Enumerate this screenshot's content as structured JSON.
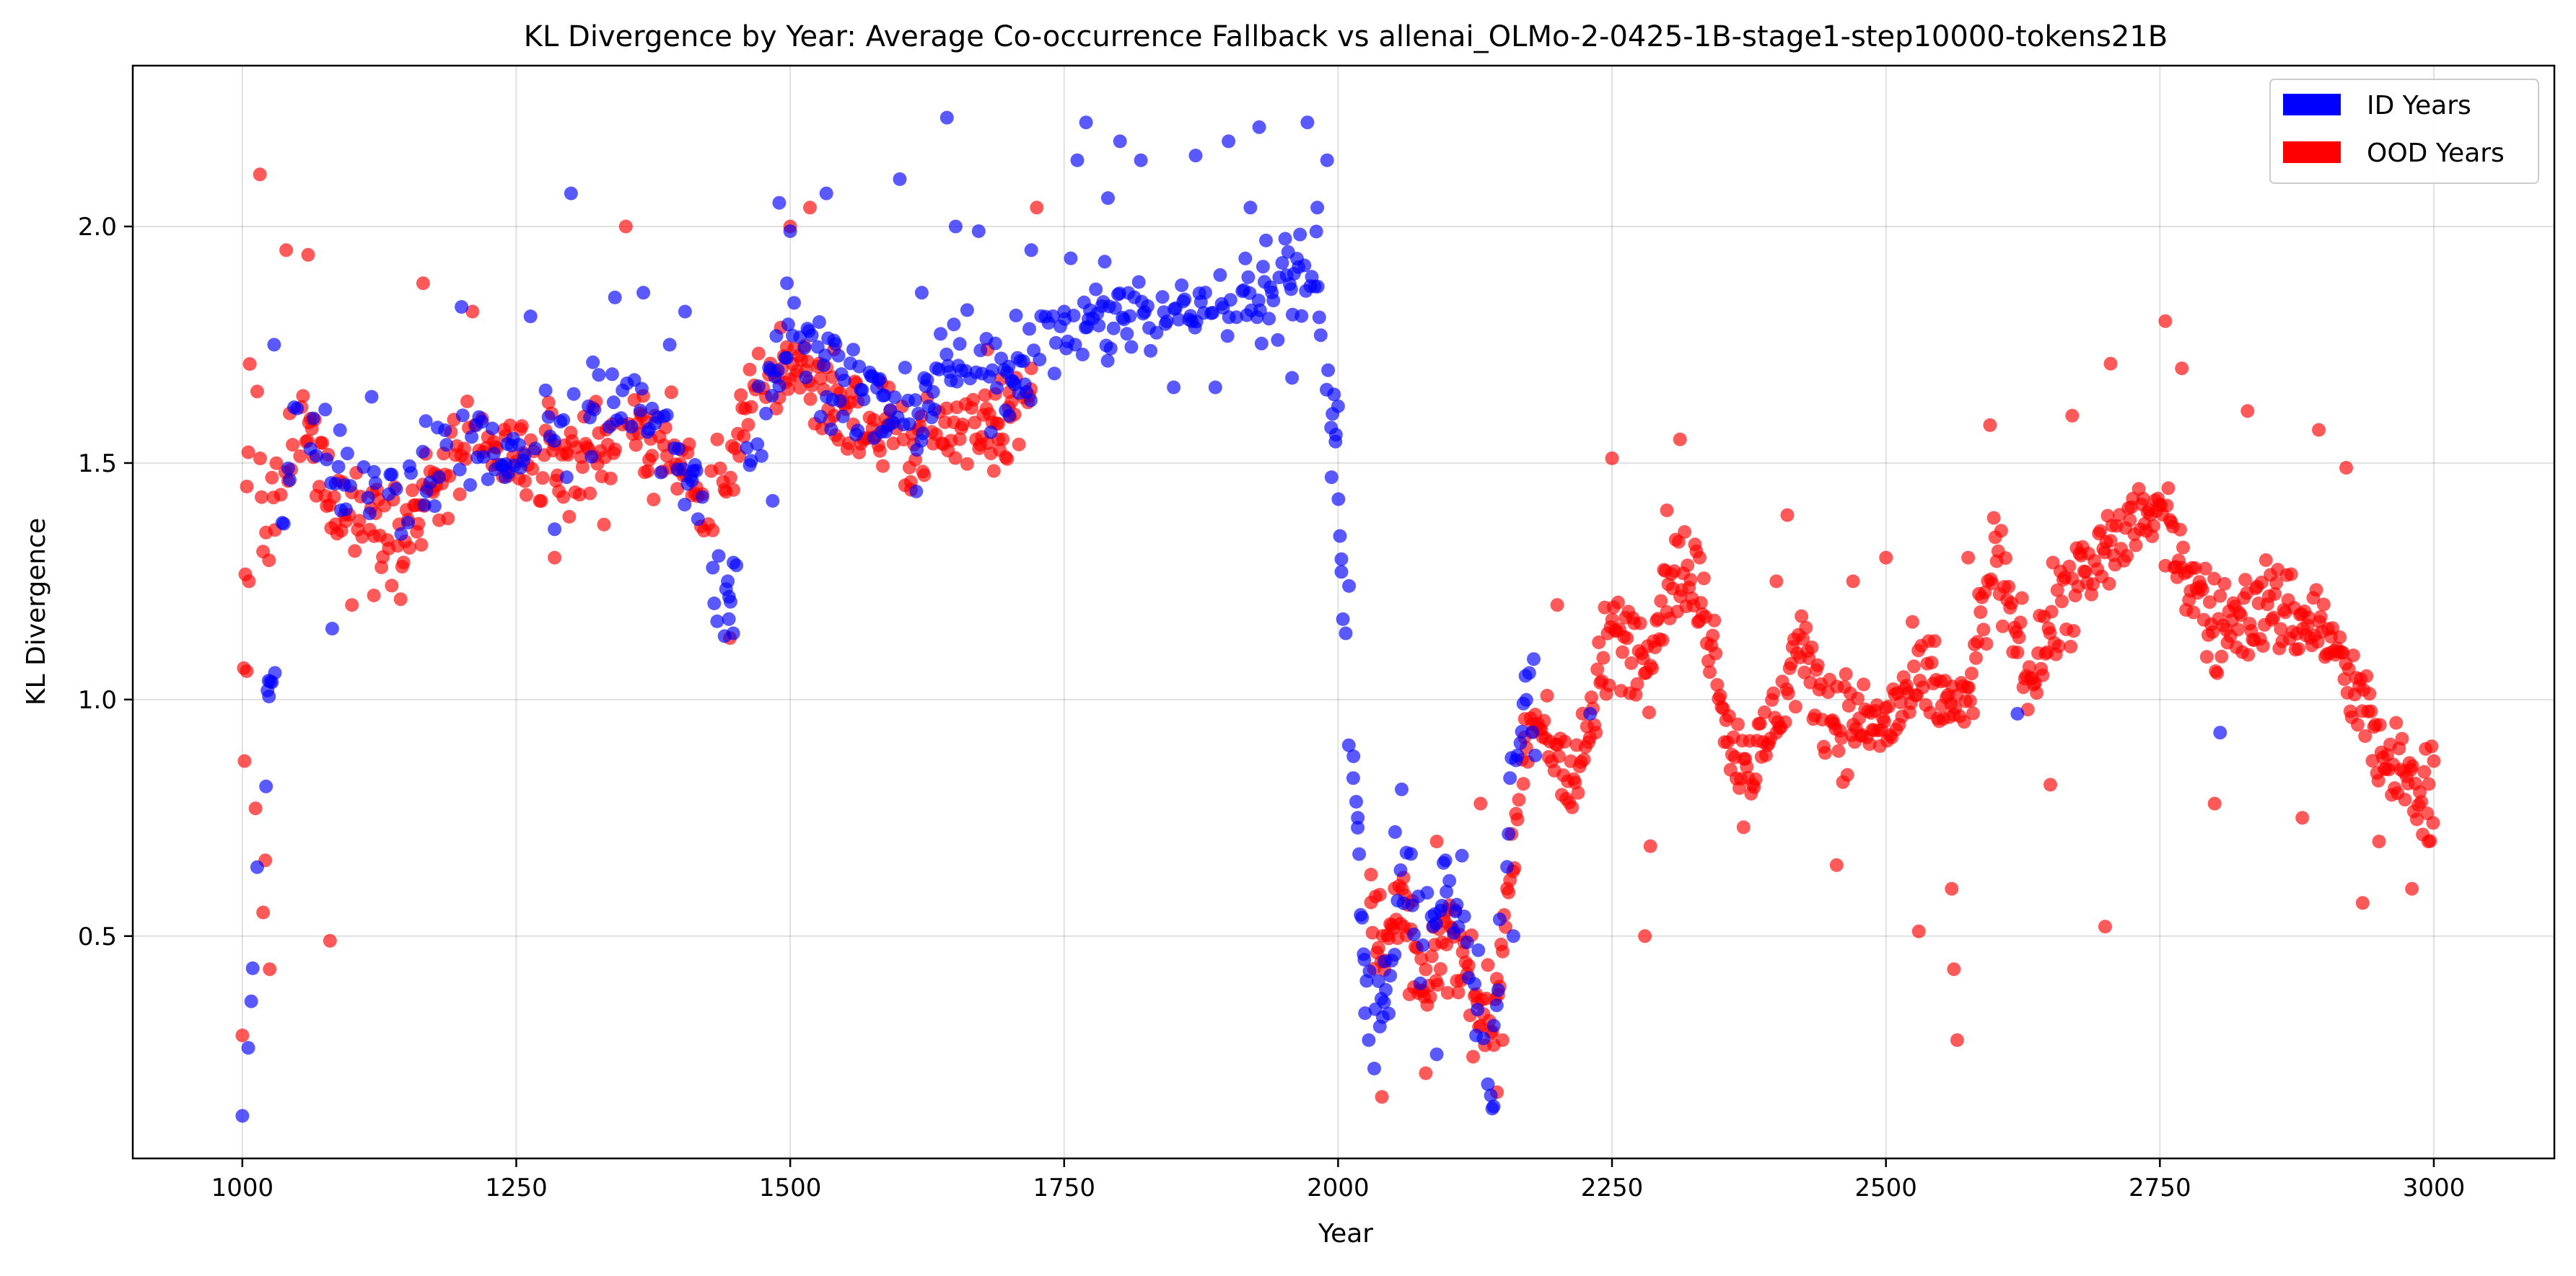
{
  "chart_data": {
    "type": "scatter",
    "title": "KL Divergence by Year: Average Co-occurrence Fallback vs allenai_OLMo-2-0425-1B-stage1-step10000-tokens21B",
    "xlabel": "Year",
    "ylabel": "KL Divergence",
    "xlim": [
      900,
      3110
    ],
    "ylim": [
      0.03,
      2.34
    ],
    "x_ticks": [
      1000,
      1250,
      1500,
      1750,
      2000,
      2250,
      2500,
      2750,
      3000
    ],
    "y_ticks": [
      0.5,
      1.0,
      1.5,
      2.0
    ],
    "x_tick_labels": [
      "1000",
      "1250",
      "1500",
      "1750",
      "2000",
      "2250",
      "2500",
      "2750",
      "3000"
    ],
    "y_tick_labels": [
      "0.5",
      "1.0",
      "1.5",
      "2.0"
    ],
    "grid": true,
    "legend_position": "top-right",
    "series": [
      {
        "name": "ID Years",
        "color": "#0000ff",
        "trend": [
          [
            1000,
            0.12
          ],
          [
            1025,
            1.04
          ],
          [
            1050,
            1.62
          ],
          [
            1100,
            1.42
          ],
          [
            1150,
            1.5
          ],
          [
            1200,
            1.52
          ],
          [
            1250,
            1.52
          ],
          [
            1300,
            1.62
          ],
          [
            1350,
            1.62
          ],
          [
            1400,
            1.52
          ],
          [
            1420,
            1.4
          ],
          [
            1440,
            1.16
          ],
          [
            1460,
            1.52
          ],
          [
            1500,
            1.8
          ],
          [
            1540,
            1.7
          ],
          [
            1600,
            1.58
          ],
          [
            1650,
            1.7
          ],
          [
            1700,
            1.7
          ],
          [
            1750,
            1.8
          ],
          [
            1800,
            1.8
          ],
          [
            1850,
            1.82
          ],
          [
            1900,
            1.85
          ],
          [
            1950,
            1.88
          ],
          [
            1980,
            1.92
          ],
          [
            1990,
            1.7
          ],
          [
            2000,
            1.5
          ],
          [
            2005,
            1.1
          ],
          [
            2015,
            0.8
          ],
          [
            2025,
            0.4
          ],
          [
            2040,
            0.35
          ],
          [
            2060,
            0.65
          ],
          [
            2080,
            0.5
          ],
          [
            2100,
            0.62
          ],
          [
            2120,
            0.48
          ],
          [
            2140,
            0.15
          ],
          [
            2160,
            0.9
          ],
          [
            2180,
            1.0
          ],
          [
            2230,
            0.95
          ],
          [
            2620,
            0.97
          ],
          [
            2805,
            0.93
          ]
        ],
        "values": [
          [
            1000,
            0.12
          ],
          [
            1024,
            1.04
          ],
          [
            1029,
            1.75
          ],
          [
            1062,
            1.53
          ],
          [
            1082,
            1.15
          ],
          [
            1090,
            1.4
          ],
          [
            1118,
            1.64
          ],
          [
            1145,
            1.35
          ],
          [
            1168,
            1.44
          ],
          [
            1200,
            1.83
          ],
          [
            1240,
            1.47
          ],
          [
            1263,
            1.81
          ],
          [
            1285,
            1.36
          ],
          [
            1296,
            1.47
          ],
          [
            1300,
            2.07
          ],
          [
            1340,
            1.85
          ],
          [
            1366,
            1.86
          ],
          [
            1382,
            1.48
          ],
          [
            1390,
            1.75
          ],
          [
            1404,
            1.82
          ],
          [
            1443,
            1.25
          ],
          [
            1444,
            1.17
          ],
          [
            1448,
            1.14
          ],
          [
            1470,
            1.54
          ],
          [
            1484,
            1.42
          ],
          [
            1490,
            2.05
          ],
          [
            1497,
            1.88
          ],
          [
            1500,
            1.99
          ],
          [
            1533,
            2.07
          ],
          [
            1560,
            1.56
          ],
          [
            1590,
            1.58
          ],
          [
            1600,
            2.1
          ],
          [
            1615,
            1.44
          ],
          [
            1620,
            1.86
          ],
          [
            1643,
            2.23
          ],
          [
            1651,
            2.0
          ],
          [
            1672,
            1.99
          ],
          [
            1700,
            1.6
          ],
          [
            1720,
            1.95
          ],
          [
            1750,
            1.82
          ],
          [
            1762,
            2.14
          ],
          [
            1770,
            2.22
          ],
          [
            1790,
            2.06
          ],
          [
            1801,
            2.18
          ],
          [
            1820,
            2.14
          ],
          [
            1850,
            1.66
          ],
          [
            1870,
            2.15
          ],
          [
            1888,
            1.66
          ],
          [
            1900,
            2.18
          ],
          [
            1920,
            2.04
          ],
          [
            1928,
            2.21
          ],
          [
            1945,
            1.76
          ],
          [
            1958,
            1.68
          ],
          [
            1972,
            2.22
          ],
          [
            1981,
            2.04
          ],
          [
            1990,
            2.14
          ],
          [
            1994,
            1.47
          ],
          [
            1998,
            1.56
          ],
          [
            2000,
            1.62
          ],
          [
            2003,
            1.27
          ],
          [
            2007,
            1.14
          ],
          [
            2010,
            1.24
          ],
          [
            2014,
            0.88
          ],
          [
            2018,
            0.75
          ],
          [
            2024,
            0.45
          ],
          [
            2028,
            0.28
          ],
          [
            2033,
            0.22
          ],
          [
            2042,
            0.36
          ],
          [
            2052,
            0.72
          ],
          [
            2058,
            0.81
          ],
          [
            2075,
            0.4
          ],
          [
            2090,
            0.25
          ],
          [
            2098,
            0.66
          ],
          [
            2113,
            0.67
          ],
          [
            2128,
            0.47
          ],
          [
            2142,
            0.14
          ],
          [
            2160,
            0.5
          ],
          [
            2171,
            1.05
          ],
          [
            2230,
            0.97
          ],
          [
            2620,
            0.97
          ],
          [
            2805,
            0.93
          ]
        ]
      },
      {
        "name": "OOD Years",
        "color": "#ff0000",
        "trend": [
          [
            1000,
            0.85
          ],
          [
            1005,
            1.6
          ],
          [
            1010,
            1.85
          ],
          [
            1020,
            1.3
          ],
          [
            1050,
            1.6
          ],
          [
            1080,
            1.45
          ],
          [
            1100,
            1.4
          ],
          [
            1150,
            1.35
          ],
          [
            1200,
            1.52
          ],
          [
            1250,
            1.5
          ],
          [
            1300,
            1.5
          ],
          [
            1350,
            1.58
          ],
          [
            1400,
            1.5
          ],
          [
            1420,
            1.4
          ],
          [
            1440,
            1.5
          ],
          [
            1460,
            1.6
          ],
          [
            1500,
            1.72
          ],
          [
            1560,
            1.58
          ],
          [
            1600,
            1.55
          ],
          [
            1640,
            1.55
          ],
          [
            1680,
            1.6
          ],
          [
            1720,
            1.62
          ],
          [
            2030,
            0.5
          ],
          [
            2060,
            0.55
          ],
          [
            2080,
            0.35
          ],
          [
            2100,
            0.55
          ],
          [
            2120,
            0.4
          ],
          [
            2140,
            0.3
          ],
          [
            2160,
            0.7
          ],
          [
            2180,
            0.95
          ],
          [
            2220,
            0.85
          ],
          [
            2250,
            1.15
          ],
          [
            2280,
            1.1
          ],
          [
            2310,
            1.3
          ],
          [
            2340,
            1.15
          ],
          [
            2360,
            0.9
          ],
          [
            2380,
            0.85
          ],
          [
            2420,
            1.1
          ],
          [
            2460,
            0.95
          ],
          [
            2500,
            0.95
          ],
          [
            2540,
            1.05
          ],
          [
            2570,
            0.95
          ],
          [
            2600,
            1.3
          ],
          [
            2630,
            1.05
          ],
          [
            2660,
            1.2
          ],
          [
            2700,
            1.3
          ],
          [
            2730,
            1.4
          ],
          [
            2760,
            1.35
          ],
          [
            2800,
            1.15
          ],
          [
            2850,
            1.2
          ],
          [
            2900,
            1.15
          ],
          [
            2930,
            1.0
          ],
          [
            2960,
            0.85
          ],
          [
            3000,
            0.8
          ]
        ],
        "values": [
          [
            1000,
            0.29
          ],
          [
            1002,
            0.87
          ],
          [
            1004,
            1.06
          ],
          [
            1006,
            1.25
          ],
          [
            1012,
            0.77
          ],
          [
            1016,
            2.11
          ],
          [
            1019,
            0.55
          ],
          [
            1021,
            0.66
          ],
          [
            1025,
            0.43
          ],
          [
            1040,
            1.95
          ],
          [
            1060,
            1.94
          ],
          [
            1080,
            0.49
          ],
          [
            1100,
            1.2
          ],
          [
            1120,
            1.22
          ],
          [
            1165,
            1.88
          ],
          [
            1210,
            1.82
          ],
          [
            1285,
            1.3
          ],
          [
            1330,
            1.37
          ],
          [
            1350,
            2.0
          ],
          [
            1445,
            1.13
          ],
          [
            1500,
            2.0
          ],
          [
            1518,
            2.04
          ],
          [
            1540,
            1.74
          ],
          [
            1610,
            1.46
          ],
          [
            1680,
            1.74
          ],
          [
            1690,
            1.55
          ],
          [
            1700,
            1.65
          ],
          [
            1720,
            1.7
          ],
          [
            1725,
            2.04
          ],
          [
            2030,
            0.63
          ],
          [
            2040,
            0.16
          ],
          [
            2060,
            0.52
          ],
          [
            2080,
            0.21
          ],
          [
            2090,
            0.7
          ],
          [
            2100,
            0.38
          ],
          [
            2130,
            0.78
          ],
          [
            2145,
            0.17
          ],
          [
            2150,
            0.28
          ],
          [
            2170,
            0.92
          ],
          [
            2200,
            1.2
          ],
          [
            2250,
            1.51
          ],
          [
            2280,
            0.5
          ],
          [
            2285,
            0.69
          ],
          [
            2300,
            1.4
          ],
          [
            2312,
            1.55
          ],
          [
            2330,
            1.3
          ],
          [
            2370,
            0.73
          ],
          [
            2400,
            1.25
          ],
          [
            2410,
            1.39
          ],
          [
            2455,
            0.65
          ],
          [
            2470,
            1.25
          ],
          [
            2500,
            1.3
          ],
          [
            2530,
            0.51
          ],
          [
            2560,
            0.6
          ],
          [
            2562,
            0.43
          ],
          [
            2565,
            0.28
          ],
          [
            2575,
            1.3
          ],
          [
            2595,
            1.58
          ],
          [
            2650,
            0.82
          ],
          [
            2670,
            1.6
          ],
          [
            2700,
            0.52
          ],
          [
            2705,
            1.71
          ],
          [
            2755,
            1.8
          ],
          [
            2770,
            1.7
          ],
          [
            2800,
            0.78
          ],
          [
            2830,
            1.61
          ],
          [
            2880,
            0.75
          ],
          [
            2895,
            1.57
          ],
          [
            2920,
            1.49
          ],
          [
            2935,
            0.57
          ],
          [
            2950,
            0.7
          ],
          [
            2980,
            0.6
          ],
          [
            2995,
            0.7
          ],
          [
            3000,
            0.87
          ]
        ]
      }
    ]
  }
}
